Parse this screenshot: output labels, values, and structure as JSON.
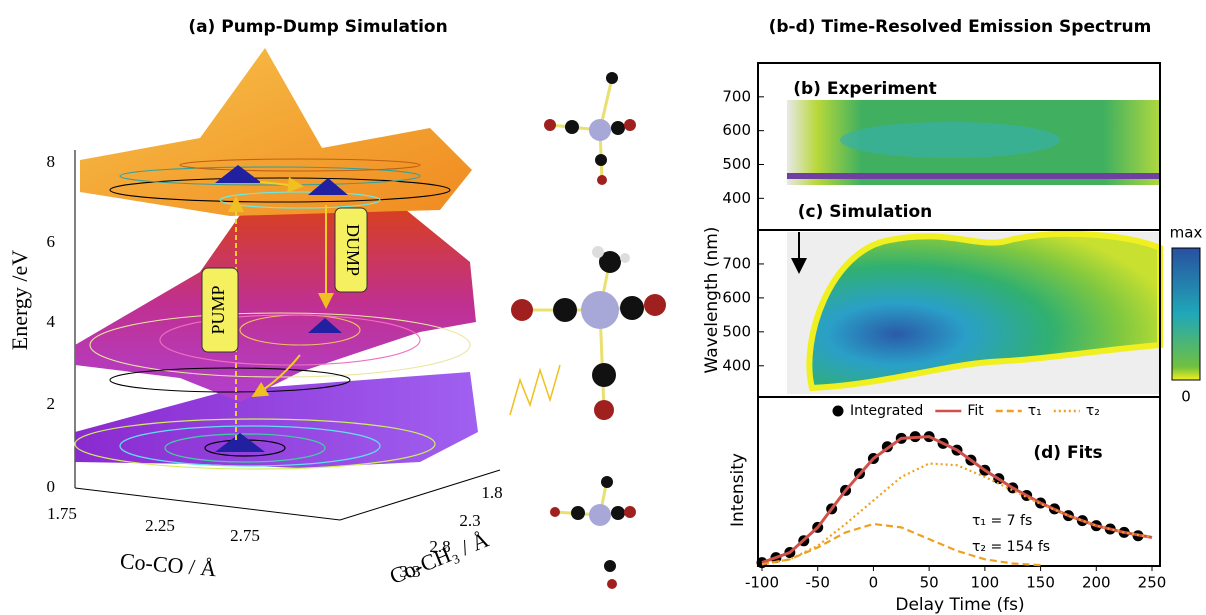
{
  "panel_a": {
    "title": "(a) Pump-Dump Simulation",
    "z_label": "Energy /eV",
    "z_ticks": [
      "0",
      "2",
      "4",
      "6",
      "8"
    ],
    "x_label": "Co-CO / Å",
    "x_ticks": [
      "1.75",
      "2.25",
      "2.75"
    ],
    "y_label": "Co-CH₃ / Å",
    "y_ticks": [
      "1.8",
      "2.3",
      "2.8",
      "3.3"
    ],
    "pump": "PUMP",
    "dump": "DUMP"
  },
  "panels_title": "(b-d) Time-Resolved Emission Spectrum",
  "chart_data": [
    {
      "type": "heatmap",
      "title": "(b) Experiment",
      "ylim": [
        330,
        800
      ],
      "yticks": [
        400,
        500,
        600,
        700
      ]
    },
    {
      "type": "heatmap",
      "title": "(c) Simulation",
      "y_label": "Wavelength (nm)",
      "ylim": [
        308,
        800
      ],
      "yticks": [
        400,
        500,
        600,
        700
      ],
      "colorbar_labels": [
        "max",
        "0"
      ]
    },
    {
      "type": "line",
      "title": "(d) Fits",
      "x_label": "Delay Time (fs)",
      "y_label": "Intensity",
      "xlim": [
        -100,
        250
      ],
      "xticks": [
        -100,
        -50,
        0,
        50,
        100,
        150,
        200,
        250
      ],
      "ylim": [
        0,
        1
      ],
      "series": [
        {
          "name": "Integrated",
          "color": "#000000",
          "style": "dots",
          "x": [
            -100,
            -87.5,
            -75,
            -62.5,
            -50,
            -37.5,
            -25,
            -12.5,
            0,
            12.5,
            25,
            37.5,
            50,
            62.5,
            75,
            87.5,
            100,
            112.5,
            125,
            137.5,
            150,
            162.5,
            175,
            187.5,
            200,
            212.5,
            225,
            237.5
          ],
          "values": [
            0.02,
            0.05,
            0.08,
            0.15,
            0.23,
            0.34,
            0.45,
            0.55,
            0.64,
            0.71,
            0.76,
            0.77,
            0.77,
            0.73,
            0.69,
            0.63,
            0.57,
            0.52,
            0.465,
            0.42,
            0.375,
            0.34,
            0.3,
            0.27,
            0.24,
            0.22,
            0.2,
            0.18
          ]
        },
        {
          "name": "Fit",
          "color": "#d0504a",
          "style": "solid",
          "x": [
            -100,
            -75,
            -50,
            -25,
            0,
            25,
            50,
            75,
            100,
            125,
            150,
            175,
            200,
            225,
            250
          ],
          "values": [
            0.02,
            0.08,
            0.23,
            0.45,
            0.64,
            0.76,
            0.77,
            0.69,
            0.57,
            0.465,
            0.375,
            0.3,
            0.24,
            0.2,
            0.17
          ]
        },
        {
          "name": "τ₁",
          "color": "#f0a020",
          "style": "dashed",
          "x": [
            -100,
            -75,
            -50,
            -25,
            0,
            25,
            50,
            75,
            100,
            125,
            150
          ],
          "values": [
            0.01,
            0.04,
            0.11,
            0.2,
            0.25,
            0.23,
            0.16,
            0.09,
            0.04,
            0.015,
            0.005
          ]
        },
        {
          "name": "τ₂",
          "color": "#f0a020",
          "style": "dotted",
          "x": [
            -100,
            -75,
            -50,
            -25,
            0,
            25,
            50,
            75,
            100,
            125,
            150,
            175,
            200,
            225,
            250
          ],
          "values": [
            0.01,
            0.04,
            0.12,
            0.25,
            0.39,
            0.53,
            0.61,
            0.6,
            0.53,
            0.45,
            0.37,
            0.3,
            0.24,
            0.2,
            0.17
          ]
        }
      ],
      "annotations": [
        "τ₁ = 7 fs",
        "τ₂ = 154 fs"
      ]
    }
  ]
}
